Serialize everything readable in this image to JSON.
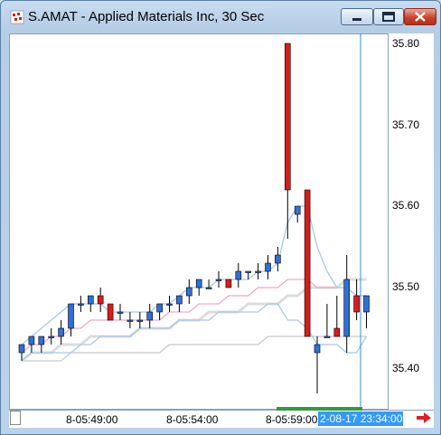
{
  "window": {
    "title": "S.AMAT - Applied Materials Inc, 30 Sec"
  },
  "icons": {
    "app": "chart-app-icon",
    "minimize": "minimize-icon",
    "maximize": "maximize-icon",
    "close": "close-icon",
    "scroll_right": "arrow-right-icon"
  },
  "colors": {
    "up_candle": "#2f6fd6",
    "down_candle": "#d81c1c",
    "cursor_line": "#2f8fe6",
    "cursor_label_bg": "#3399ff"
  },
  "axis": {
    "cursor_time": "2-08-17 23:34:00"
  },
  "chart_data": {
    "type": "candlestick",
    "ylim": [
      35.36,
      35.82
    ],
    "y_ticks": [
      "35.80",
      "35.70",
      "35.60",
      "35.50",
      "35.40"
    ],
    "x_ticks": [
      "8-05:49:00",
      "8-05:54:00",
      "8-05:59:00"
    ],
    "candles": [
      {
        "o": 35.42,
        "h": 35.43,
        "l": 35.41,
        "c": 35.43
      },
      {
        "o": 35.43,
        "h": 35.44,
        "l": 35.42,
        "c": 35.44
      },
      {
        "o": 35.43,
        "h": 35.44,
        "l": 35.42,
        "c": 35.44
      },
      {
        "o": 35.44,
        "h": 35.45,
        "l": 35.43,
        "c": 35.44
      },
      {
        "o": 35.44,
        "h": 35.46,
        "l": 35.43,
        "c": 35.45
      },
      {
        "o": 35.45,
        "h": 35.48,
        "l": 35.44,
        "c": 35.48
      },
      {
        "o": 35.48,
        "h": 35.49,
        "l": 35.47,
        "c": 35.48
      },
      {
        "o": 35.48,
        "h": 35.49,
        "l": 35.47,
        "c": 35.49
      },
      {
        "o": 35.49,
        "h": 35.5,
        "l": 35.47,
        "c": 35.48
      },
      {
        "o": 35.48,
        "h": 35.48,
        "l": 35.46,
        "c": 35.46
      },
      {
        "o": 35.47,
        "h": 35.48,
        "l": 35.46,
        "c": 35.47
      },
      {
        "o": 35.46,
        "h": 35.47,
        "l": 35.45,
        "c": 35.46
      },
      {
        "o": 35.46,
        "h": 35.47,
        "l": 35.45,
        "c": 35.46
      },
      {
        "o": 35.46,
        "h": 35.48,
        "l": 35.45,
        "c": 35.47
      },
      {
        "o": 35.47,
        "h": 35.48,
        "l": 35.46,
        "c": 35.48
      },
      {
        "o": 35.48,
        "h": 35.49,
        "l": 35.47,
        "c": 35.48
      },
      {
        "o": 35.48,
        "h": 35.49,
        "l": 35.47,
        "c": 35.49
      },
      {
        "o": 35.49,
        "h": 35.51,
        "l": 35.48,
        "c": 35.5
      },
      {
        "o": 35.5,
        "h": 35.51,
        "l": 35.49,
        "c": 35.51
      },
      {
        "o": 35.5,
        "h": 35.51,
        "l": 35.5,
        "c": 35.5
      },
      {
        "o": 35.51,
        "h": 35.52,
        "l": 35.5,
        "c": 35.51
      },
      {
        "o": 35.51,
        "h": 35.51,
        "l": 35.5,
        "c": 35.5
      },
      {
        "o": 35.51,
        "h": 35.53,
        "l": 35.5,
        "c": 35.52
      },
      {
        "o": 35.52,
        "h": 35.52,
        "l": 35.51,
        "c": 35.52
      },
      {
        "o": 35.52,
        "h": 35.53,
        "l": 35.51,
        "c": 35.52
      },
      {
        "o": 35.52,
        "h": 35.54,
        "l": 35.51,
        "c": 35.53
      },
      {
        "o": 35.53,
        "h": 35.55,
        "l": 35.52,
        "c": 35.54
      },
      {
        "o": 35.8,
        "h": 35.8,
        "l": 35.56,
        "c": 35.62
      },
      {
        "o": 35.59,
        "h": 35.6,
        "l": 35.58,
        "c": 35.6
      },
      {
        "o": 35.62,
        "h": 35.62,
        "l": 35.44,
        "c": 35.44
      },
      {
        "o": 35.42,
        "h": 35.44,
        "l": 35.37,
        "c": 35.43
      },
      {
        "o": 35.44,
        "h": 35.48,
        "l": 35.44,
        "c": 35.44
      },
      {
        "o": 35.45,
        "h": 35.49,
        "l": 35.44,
        "c": 35.44
      },
      {
        "o": 35.44,
        "h": 35.54,
        "l": 35.42,
        "c": 35.51
      },
      {
        "o": 35.49,
        "h": 35.51,
        "l": 35.46,
        "c": 35.47
      },
      {
        "o": 35.47,
        "h": 35.49,
        "l": 35.45,
        "c": 35.49
      }
    ],
    "bands": [
      {
        "name": "upper",
        "color": "#a8c8e8",
        "values": [
          35.43,
          35.44,
          35.45,
          35.46,
          35.47,
          35.48,
          35.48,
          35.48,
          35.48,
          35.47,
          35.47,
          35.47,
          35.47,
          35.47,
          35.48,
          35.48,
          35.49,
          35.5,
          35.5,
          35.5,
          35.51,
          35.51,
          35.51,
          35.51,
          35.52,
          35.52,
          35.53,
          35.58,
          35.6,
          35.6,
          35.55,
          35.52,
          35.5,
          35.5,
          35.49,
          35.49
        ]
      },
      {
        "name": "middle",
        "color": "#f4a6c8",
        "values": [
          35.42,
          35.43,
          35.43,
          35.44,
          35.44,
          35.45,
          35.45,
          35.46,
          35.46,
          35.46,
          35.46,
          35.46,
          35.46,
          35.46,
          35.46,
          35.47,
          35.47,
          35.47,
          35.48,
          35.48,
          35.48,
          35.49,
          35.49,
          35.49,
          35.5,
          35.5,
          35.5,
          35.51,
          35.51,
          35.51,
          35.5,
          35.5,
          35.5,
          35.5,
          35.49,
          35.49
        ]
      },
      {
        "name": "lower",
        "color": "#a8c8e8",
        "values": [
          35.41,
          35.42,
          35.42,
          35.42,
          35.42,
          35.42,
          35.43,
          35.43,
          35.44,
          35.44,
          35.44,
          35.44,
          35.45,
          35.45,
          35.45,
          35.45,
          35.46,
          35.46,
          35.46,
          35.46,
          35.47,
          35.47,
          35.47,
          35.47,
          35.47,
          35.48,
          35.48,
          35.46,
          35.46,
          35.45,
          35.43,
          35.43,
          35.43,
          35.42,
          35.42,
          35.44
        ]
      },
      {
        "name": "ma-slow",
        "color": "#dcdcdc",
        "values": [
          35.41,
          35.42,
          35.42,
          35.42,
          35.43,
          35.43,
          35.43,
          35.44,
          35.44,
          35.44,
          35.44,
          35.44,
          35.45,
          35.45,
          35.45,
          35.45,
          35.46,
          35.46,
          35.46,
          35.47,
          35.47,
          35.47,
          35.47,
          35.48,
          35.48,
          35.48,
          35.48,
          35.49,
          35.49,
          35.5,
          35.5,
          35.5,
          35.5,
          35.51,
          35.51,
          35.51
        ]
      },
      {
        "name": "ma-long",
        "color": "#c8c8c8",
        "values": [
          35.41,
          35.41,
          35.41,
          35.41,
          35.41,
          35.42,
          35.42,
          35.42,
          35.42,
          35.42,
          35.42,
          35.42,
          35.42,
          35.42,
          35.42,
          35.43,
          35.43,
          35.43,
          35.43,
          35.43,
          35.43,
          35.43,
          35.43,
          35.43,
          35.43,
          35.44,
          35.44,
          35.44,
          35.44,
          35.44,
          35.44,
          35.44,
          35.44,
          35.44,
          35.44,
          35.44
        ]
      }
    ],
    "grid": false
  }
}
